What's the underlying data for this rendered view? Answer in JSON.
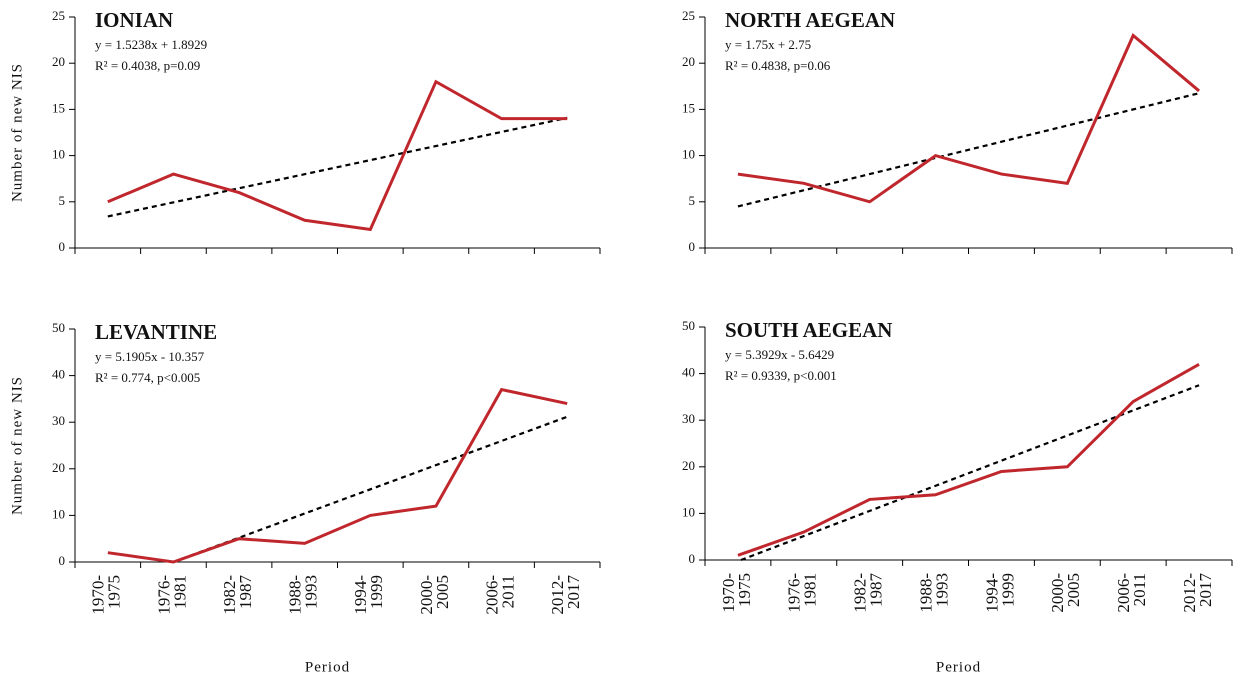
{
  "chart_data": [
    {
      "type": "line",
      "title": "IONIAN",
      "equation": "y = 1.5238x + 1.8929",
      "stats": "R² = 0.4038, p=0.09",
      "ylabel": "Number of new NIS",
      "ylim": [
        0,
        25
      ],
      "yticks": [
        0,
        5,
        10,
        15,
        20,
        25
      ],
      "series": [
        {
          "color": "#c0272d",
          "values": [
            5,
            8,
            6,
            3,
            2,
            18,
            14,
            14
          ]
        }
      ],
      "trend": {
        "slope": 1.5238,
        "intercept": 1.8929,
        "color": "#000000"
      }
    },
    {
      "type": "line",
      "title": "NORTH AEGEAN",
      "equation": "y = 1.75x + 2.75",
      "stats": "R² = 0.4838, p=0.06",
      "ylim": [
        0,
        25
      ],
      "yticks": [
        0,
        5,
        10,
        15,
        20,
        25
      ],
      "series": [
        {
          "color": "#c0272d",
          "values": [
            8,
            7,
            5,
            10,
            8,
            7,
            23,
            17
          ]
        }
      ],
      "trend": {
        "slope": 1.75,
        "intercept": 2.75,
        "color": "#000000"
      }
    },
    {
      "type": "line",
      "title": "LEVANTINE",
      "equation": "y = 5.1905x - 10.357",
      "stats": "R² = 0.774, p<0.005",
      "ylabel": "Number of new NIS",
      "xlabel": "Period",
      "categories": [
        [
          "1970-",
          "1975"
        ],
        [
          "1976-",
          "1981"
        ],
        [
          "1982-",
          "1987"
        ],
        [
          "1988-",
          "1993"
        ],
        [
          "1994-",
          "1999"
        ],
        [
          "2000-",
          "2005"
        ],
        [
          "2006-",
          "2011"
        ],
        [
          "2012-",
          "2017"
        ]
      ],
      "ylim": [
        0,
        50
      ],
      "yticks": [
        0,
        10,
        20,
        30,
        40,
        50
      ],
      "series": [
        {
          "color": "#c0272d",
          "values": [
            2,
            0,
            5,
            4,
            10,
            12,
            37,
            34
          ]
        }
      ],
      "trend": {
        "slope": 5.1905,
        "intercept": -10.357,
        "color": "#000000"
      }
    },
    {
      "type": "line",
      "title": "SOUTH AEGEAN",
      "equation": "y = 5.3929x - 5.6429",
      "stats": "R² = 0.9339, p<0.001",
      "xlabel": "Period",
      "categories": [
        [
          "1970-",
          "1975"
        ],
        [
          "1976-",
          "1981"
        ],
        [
          "1982-",
          "1987"
        ],
        [
          "1988-",
          "1993"
        ],
        [
          "1994-",
          "1999"
        ],
        [
          "2000-",
          "2005"
        ],
        [
          "2006-",
          "2011"
        ],
        [
          "2012-",
          "2017"
        ]
      ],
      "ylim": [
        0,
        50
      ],
      "yticks": [
        0,
        10,
        20,
        30,
        40,
        50
      ],
      "series": [
        {
          "color": "#c0272d",
          "values": [
            1,
            6,
            13,
            14,
            19,
            20,
            34,
            42
          ]
        }
      ],
      "trend": {
        "slope": 5.3929,
        "intercept": -5.6429,
        "color": "#000000"
      }
    }
  ]
}
